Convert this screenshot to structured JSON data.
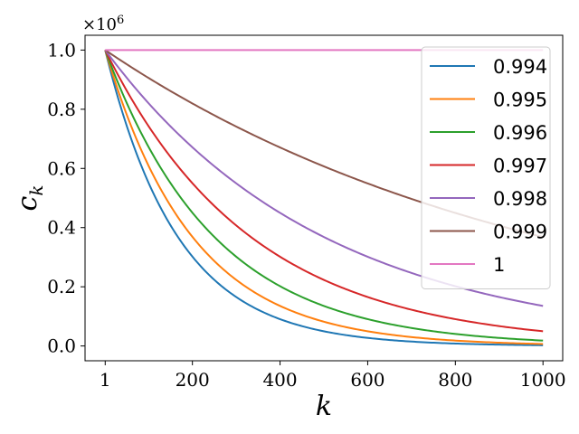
{
  "chart_data": {
    "type": "line",
    "xlabel": "k",
    "ylabel": "c_k",
    "y_offset_text": "×10^6",
    "xlim": [
      -45,
      1045
    ],
    "ylim": [
      -0.05,
      1.05
    ],
    "xticks": [
      1,
      200,
      400,
      600,
      800,
      1000
    ],
    "xtick_labels": [
      "1",
      "200",
      "400",
      "600",
      "800",
      "1000"
    ],
    "yticks": [
      0.0,
      0.2,
      0.4,
      0.6,
      0.8,
      1.0
    ],
    "ytick_labels": [
      "0.0",
      "0.2",
      "0.4",
      "0.6",
      "0.8",
      "1.0"
    ],
    "grid": false,
    "legend_position": "top-right",
    "scale": 1000000,
    "x": [
      1,
      100,
      200,
      300,
      400,
      500,
      600,
      700,
      800,
      900,
      1000
    ],
    "series": [
      {
        "name": "0.994",
        "color": "#1f77b4",
        "ratio": 0.994,
        "values": [
          1000000,
          551000,
          301000,
          165000,
          90000,
          49000,
          27000,
          14700,
          8000,
          4400,
          2400
        ]
      },
      {
        "name": "0.995",
        "color": "#ff7f0e",
        "ratio": 0.995,
        "values": [
          1000000,
          609000,
          368000,
          223000,
          135000,
          82000,
          49600,
          30100,
          18200,
          11000,
          6700
        ]
      },
      {
        "name": "0.996",
        "color": "#2ca02c",
        "ratio": 0.996,
        "values": [
          1000000,
          673000,
          450000,
          301000,
          202000,
          135000,
          90500,
          60600,
          40600,
          27200,
          18200
        ]
      },
      {
        "name": "0.997",
        "color": "#d62728",
        "ratio": 0.997,
        "values": [
          1000000,
          743000,
          549000,
          406000,
          301000,
          223000,
          165000,
          122000,
          90400,
          66900,
          49500
        ]
      },
      {
        "name": "0.998",
        "color": "#9467bd",
        "ratio": 0.998,
        "values": [
          1000000,
          820000,
          671000,
          549000,
          450000,
          368000,
          301000,
          247000,
          202000,
          165000,
          135000
        ]
      },
      {
        "name": "0.999",
        "color": "#8c564b",
        "ratio": 0.999,
        "values": [
          1000000,
          906000,
          819000,
          741000,
          671000,
          607000,
          549000,
          497000,
          450000,
          407000,
          368000
        ]
      },
      {
        "name": "1",
        "color": "#e377c2",
        "ratio": 1.0,
        "values": [
          1000000,
          1000000,
          1000000,
          1000000,
          1000000,
          1000000,
          1000000,
          1000000,
          1000000,
          1000000,
          1000000
        ]
      }
    ]
  }
}
